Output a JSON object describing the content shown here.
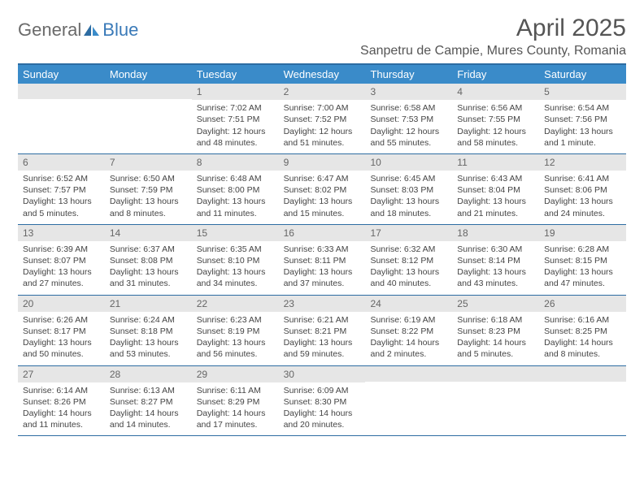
{
  "logo": {
    "general": "General",
    "blue": "Blue"
  },
  "title": "April 2025",
  "location": "Sanpetru de Campie, Mures County, Romania",
  "colors": {
    "header_bg": "#3a8bc9",
    "border": "#2d6ca2",
    "daynum_bg": "#e6e6e6",
    "text": "#444444",
    "logo_gray": "#6a6a6a",
    "logo_blue": "#3a7ab8"
  },
  "day_names": [
    "Sunday",
    "Monday",
    "Tuesday",
    "Wednesday",
    "Thursday",
    "Friday",
    "Saturday"
  ],
  "weeks": [
    [
      {
        "n": "",
        "empty": true
      },
      {
        "n": "",
        "empty": true
      },
      {
        "n": "1",
        "sunrise": "Sunrise: 7:02 AM",
        "sunset": "Sunset: 7:51 PM",
        "daylight": "Daylight: 12 hours and 48 minutes."
      },
      {
        "n": "2",
        "sunrise": "Sunrise: 7:00 AM",
        "sunset": "Sunset: 7:52 PM",
        "daylight": "Daylight: 12 hours and 51 minutes."
      },
      {
        "n": "3",
        "sunrise": "Sunrise: 6:58 AM",
        "sunset": "Sunset: 7:53 PM",
        "daylight": "Daylight: 12 hours and 55 minutes."
      },
      {
        "n": "4",
        "sunrise": "Sunrise: 6:56 AM",
        "sunset": "Sunset: 7:55 PM",
        "daylight": "Daylight: 12 hours and 58 minutes."
      },
      {
        "n": "5",
        "sunrise": "Sunrise: 6:54 AM",
        "sunset": "Sunset: 7:56 PM",
        "daylight": "Daylight: 13 hours and 1 minute."
      }
    ],
    [
      {
        "n": "6",
        "sunrise": "Sunrise: 6:52 AM",
        "sunset": "Sunset: 7:57 PM",
        "daylight": "Daylight: 13 hours and 5 minutes."
      },
      {
        "n": "7",
        "sunrise": "Sunrise: 6:50 AM",
        "sunset": "Sunset: 7:59 PM",
        "daylight": "Daylight: 13 hours and 8 minutes."
      },
      {
        "n": "8",
        "sunrise": "Sunrise: 6:48 AM",
        "sunset": "Sunset: 8:00 PM",
        "daylight": "Daylight: 13 hours and 11 minutes."
      },
      {
        "n": "9",
        "sunrise": "Sunrise: 6:47 AM",
        "sunset": "Sunset: 8:02 PM",
        "daylight": "Daylight: 13 hours and 15 minutes."
      },
      {
        "n": "10",
        "sunrise": "Sunrise: 6:45 AM",
        "sunset": "Sunset: 8:03 PM",
        "daylight": "Daylight: 13 hours and 18 minutes."
      },
      {
        "n": "11",
        "sunrise": "Sunrise: 6:43 AM",
        "sunset": "Sunset: 8:04 PM",
        "daylight": "Daylight: 13 hours and 21 minutes."
      },
      {
        "n": "12",
        "sunrise": "Sunrise: 6:41 AM",
        "sunset": "Sunset: 8:06 PM",
        "daylight": "Daylight: 13 hours and 24 minutes."
      }
    ],
    [
      {
        "n": "13",
        "sunrise": "Sunrise: 6:39 AM",
        "sunset": "Sunset: 8:07 PM",
        "daylight": "Daylight: 13 hours and 27 minutes."
      },
      {
        "n": "14",
        "sunrise": "Sunrise: 6:37 AM",
        "sunset": "Sunset: 8:08 PM",
        "daylight": "Daylight: 13 hours and 31 minutes."
      },
      {
        "n": "15",
        "sunrise": "Sunrise: 6:35 AM",
        "sunset": "Sunset: 8:10 PM",
        "daylight": "Daylight: 13 hours and 34 minutes."
      },
      {
        "n": "16",
        "sunrise": "Sunrise: 6:33 AM",
        "sunset": "Sunset: 8:11 PM",
        "daylight": "Daylight: 13 hours and 37 minutes."
      },
      {
        "n": "17",
        "sunrise": "Sunrise: 6:32 AM",
        "sunset": "Sunset: 8:12 PM",
        "daylight": "Daylight: 13 hours and 40 minutes."
      },
      {
        "n": "18",
        "sunrise": "Sunrise: 6:30 AM",
        "sunset": "Sunset: 8:14 PM",
        "daylight": "Daylight: 13 hours and 43 minutes."
      },
      {
        "n": "19",
        "sunrise": "Sunrise: 6:28 AM",
        "sunset": "Sunset: 8:15 PM",
        "daylight": "Daylight: 13 hours and 47 minutes."
      }
    ],
    [
      {
        "n": "20",
        "sunrise": "Sunrise: 6:26 AM",
        "sunset": "Sunset: 8:17 PM",
        "daylight": "Daylight: 13 hours and 50 minutes."
      },
      {
        "n": "21",
        "sunrise": "Sunrise: 6:24 AM",
        "sunset": "Sunset: 8:18 PM",
        "daylight": "Daylight: 13 hours and 53 minutes."
      },
      {
        "n": "22",
        "sunrise": "Sunrise: 6:23 AM",
        "sunset": "Sunset: 8:19 PM",
        "daylight": "Daylight: 13 hours and 56 minutes."
      },
      {
        "n": "23",
        "sunrise": "Sunrise: 6:21 AM",
        "sunset": "Sunset: 8:21 PM",
        "daylight": "Daylight: 13 hours and 59 minutes."
      },
      {
        "n": "24",
        "sunrise": "Sunrise: 6:19 AM",
        "sunset": "Sunset: 8:22 PM",
        "daylight": "Daylight: 14 hours and 2 minutes."
      },
      {
        "n": "25",
        "sunrise": "Sunrise: 6:18 AM",
        "sunset": "Sunset: 8:23 PM",
        "daylight": "Daylight: 14 hours and 5 minutes."
      },
      {
        "n": "26",
        "sunrise": "Sunrise: 6:16 AM",
        "sunset": "Sunset: 8:25 PM",
        "daylight": "Daylight: 14 hours and 8 minutes."
      }
    ],
    [
      {
        "n": "27",
        "sunrise": "Sunrise: 6:14 AM",
        "sunset": "Sunset: 8:26 PM",
        "daylight": "Daylight: 14 hours and 11 minutes."
      },
      {
        "n": "28",
        "sunrise": "Sunrise: 6:13 AM",
        "sunset": "Sunset: 8:27 PM",
        "daylight": "Daylight: 14 hours and 14 minutes."
      },
      {
        "n": "29",
        "sunrise": "Sunrise: 6:11 AM",
        "sunset": "Sunset: 8:29 PM",
        "daylight": "Daylight: 14 hours and 17 minutes."
      },
      {
        "n": "30",
        "sunrise": "Sunrise: 6:09 AM",
        "sunset": "Sunset: 8:30 PM",
        "daylight": "Daylight: 14 hours and 20 minutes."
      },
      {
        "n": "",
        "empty": true
      },
      {
        "n": "",
        "empty": true
      },
      {
        "n": "",
        "empty": true
      }
    ]
  ]
}
